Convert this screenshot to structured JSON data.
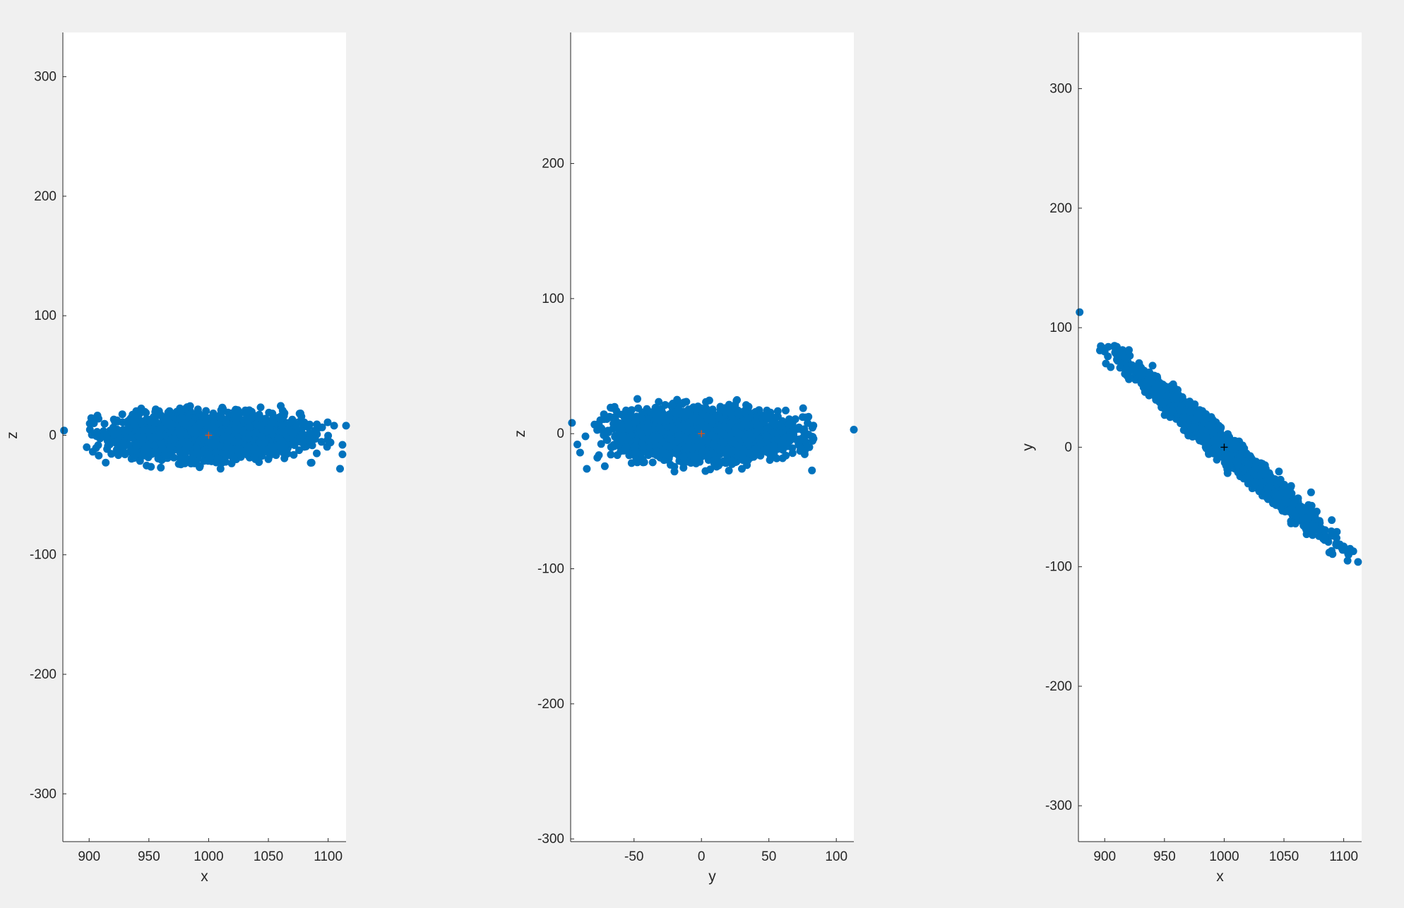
{
  "chart_data": [
    {
      "type": "scatter",
      "title": "",
      "xlabel": "x",
      "ylabel": "z",
      "xlim": [
        878,
        1115
      ],
      "ylim": [
        -340,
        337
      ],
      "xticks": [
        900,
        950,
        1000,
        1050,
        1100
      ],
      "yticks": [
        -300,
        -200,
        -100,
        0,
        100,
        200,
        300
      ],
      "xtick_labels": [
        "900",
        "950",
        "1000",
        "1050",
        "1100"
      ],
      "ytick_labels": [
        "-300",
        "-200",
        "-100",
        "0",
        "100",
        "200",
        "300"
      ],
      "grid": false,
      "marker_color": "#0072BD",
      "center_marker": {
        "x": 1000,
        "y": 0,
        "color": "#D95319",
        "symbol": "+"
      },
      "series": [
        {
          "cloud": {
            "center": [
              1000,
              0
            ],
            "sd": [
              38,
              9
            ],
            "rho": 0.0,
            "clip": [
              [
                900,
                1100
              ],
              [
                -28,
                26
              ]
            ],
            "n": 2200
          },
          "points": [
            [
              879,
              4
            ],
            [
              898,
              -10
            ],
            [
              1115,
              8
            ],
            [
              1110,
              -28
            ],
            [
              1112,
              -8
            ],
            [
              1112,
              -16
            ],
            [
              1105,
              8
            ],
            [
              1102,
              -6
            ],
            [
              904,
              10
            ],
            [
              908,
              -17
            ],
            [
              1050,
              -20
            ],
            [
              975,
              -24
            ],
            [
              1010,
              -28
            ]
          ]
        }
      ]
    },
    {
      "type": "scatter",
      "title": "",
      "xlabel": "y",
      "ylabel": "z",
      "xlim": [
        -97,
        113
      ],
      "ylim": [
        -302,
        297
      ],
      "xticks": [
        -50,
        0,
        50,
        100
      ],
      "yticks": [
        -300,
        -200,
        -100,
        0,
        100,
        200
      ],
      "xtick_labels": [
        "-50",
        "0",
        "50",
        "100"
      ],
      "ytick_labels": [
        "-300",
        "-200",
        "-100",
        "0",
        "100",
        "200"
      ],
      "grid": false,
      "marker_color": "#0072BD",
      "center_marker": {
        "x": 0,
        "y": 0,
        "color": "#D95319",
        "symbol": "+"
      },
      "series": [
        {
          "cloud": {
            "center": [
              0,
              0
            ],
            "sd": [
              32,
              9
            ],
            "rho": 0.0,
            "clip": [
              [
                -80,
                85
              ],
              [
                -28,
                26
              ]
            ],
            "n": 2200
          },
          "points": [
            [
              -96,
              8
            ],
            [
              113,
              3
            ],
            [
              -85,
              -26
            ],
            [
              -90,
              -14
            ],
            [
              -92,
              -8
            ],
            [
              -86,
              -2
            ],
            [
              83,
              6
            ],
            [
              80,
              -10
            ],
            [
              -75,
              10
            ],
            [
              -20,
              -28
            ],
            [
              30,
              -26
            ]
          ]
        }
      ]
    },
    {
      "type": "scatter",
      "title": "",
      "xlabel": "x",
      "ylabel": "y",
      "xlim": [
        878,
        1115
      ],
      "ylim": [
        -330,
        347
      ],
      "xticks": [
        900,
        950,
        1000,
        1050,
        1100
      ],
      "yticks": [
        -300,
        -200,
        -100,
        0,
        100,
        200,
        300
      ],
      "xtick_labels": [
        "900",
        "950",
        "1000",
        "1050",
        "1100"
      ],
      "ytick_labels": [
        "-300",
        "-200",
        "-100",
        "0",
        "100",
        "200",
        "300"
      ],
      "grid": false,
      "marker_color": "#0072BD",
      "center_marker": {
        "x": 1000,
        "y": 0,
        "color": "#000000",
        "symbol": "+"
      },
      "series": [
        {
          "cloud": {
            "center": [
              1000,
              0
            ],
            "sd": [
              38,
              33
            ],
            "rho": -0.985,
            "clip": [
              [
                895,
                1110
              ],
              [
                -95,
                85
              ]
            ],
            "n": 2200
          },
          "points": [
            [
              879,
              113
            ],
            [
              896,
              81
            ],
            [
              900,
              80
            ],
            [
              903,
              84
            ],
            [
              908,
              84
            ],
            [
              901,
              70
            ],
            [
              905,
              67
            ],
            [
              1104,
              -90
            ],
            [
              1108,
              -87
            ],
            [
              1112,
              -96
            ],
            [
              1100,
              -83
            ],
            [
              1094,
              -76
            ],
            [
              1090,
              -61
            ]
          ]
        }
      ]
    }
  ]
}
